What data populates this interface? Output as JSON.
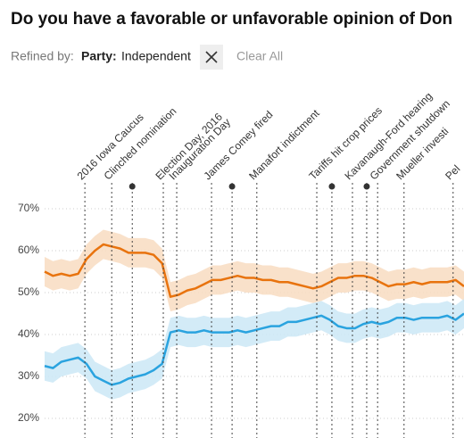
{
  "header": {
    "title": "Do you have a favorable or unfavorable opinion of Don"
  },
  "filter": {
    "prefix": "Refined by:",
    "key": "Party:",
    "value": "Independent",
    "clear": "Clear All"
  },
  "chart_data": {
    "type": "line",
    "x": [
      0,
      2,
      4,
      6,
      8,
      10,
      12,
      14,
      16,
      18,
      20,
      22,
      24,
      26,
      28,
      30,
      32,
      34,
      36,
      38,
      40,
      42,
      44,
      46,
      48,
      50,
      52,
      54,
      56,
      58,
      60,
      62,
      64,
      66,
      68,
      70,
      72,
      74,
      76,
      78,
      80,
      82,
      84,
      86,
      88,
      90,
      92,
      94,
      96,
      98,
      100
    ],
    "xlim": [
      0,
      100
    ],
    "ylim": [
      15,
      75
    ],
    "yticks": [
      {
        "value": 20,
        "label": "20%"
      },
      {
        "value": 30,
        "label": "30%"
      },
      {
        "value": 40,
        "label": "40%"
      },
      {
        "value": 50,
        "label": "50%"
      },
      {
        "value": 60,
        "label": "60%"
      },
      {
        "value": 70,
        "label": "70%"
      }
    ],
    "grid": true,
    "series": [
      {
        "color": "#e8730e",
        "band_color": "#f8dcc1",
        "band": 3.5,
        "values": [
          55,
          54,
          54.5,
          54,
          54.5,
          58,
          60,
          61.5,
          61,
          60.5,
          59.5,
          59.5,
          59.5,
          59,
          57,
          49,
          49.5,
          50.5,
          51,
          52,
          53,
          53,
          53.5,
          54,
          53.5,
          53.5,
          53,
          53,
          52.5,
          52.5,
          52,
          51.5,
          51,
          51.5,
          52.5,
          53.5,
          53.5,
          54,
          54,
          53.5,
          52.5,
          51.5,
          52,
          52,
          52.5,
          52,
          52.5,
          52.5,
          52.5,
          53,
          51.5
        ]
      },
      {
        "color": "#2aa3df",
        "band_color": "#cbe7f6",
        "band": 3.5,
        "values": [
          32.5,
          32,
          33.5,
          34,
          34.5,
          33,
          30,
          29,
          28,
          28.5,
          29.5,
          30,
          30.5,
          31.5,
          33,
          40.5,
          41,
          40.5,
          40.5,
          41,
          40.5,
          40.5,
          40.5,
          41,
          40.5,
          41,
          41.5,
          42,
          42,
          43,
          43,
          43.5,
          44,
          44.5,
          43.5,
          42,
          41.5,
          41.5,
          42.5,
          43,
          42.5,
          43,
          44,
          44,
          43.5,
          44,
          44,
          44,
          44.5,
          43.5,
          45
        ]
      }
    ],
    "events": [
      {
        "x": 9.6,
        "label": "2016 Iowa Caucus"
      },
      {
        "x": 16,
        "label": "Clinched nomination"
      },
      {
        "x": 20.9,
        "label": null
      },
      {
        "x": 28.3,
        "label": "Election Day, 2016"
      },
      {
        "x": 31.5,
        "label": "Inauguration Day"
      },
      {
        "x": 39.8,
        "label": "James Comey fired"
      },
      {
        "x": 44.7,
        "label": null
      },
      {
        "x": 50.6,
        "label": "Manafort indictment"
      },
      {
        "x": 64.9,
        "label": "Tariffs hit crop prices"
      },
      {
        "x": 68.5,
        "label": null
      },
      {
        "x": 73.4,
        "label": "Kavanaugh-Ford hearing"
      },
      {
        "x": 76.8,
        "label": null
      },
      {
        "x": 79.4,
        "label": "Government shutdown"
      },
      {
        "x": 85.7,
        "label": "Mueller investi"
      },
      {
        "x": 97.4,
        "label": "Pel"
      }
    ]
  }
}
